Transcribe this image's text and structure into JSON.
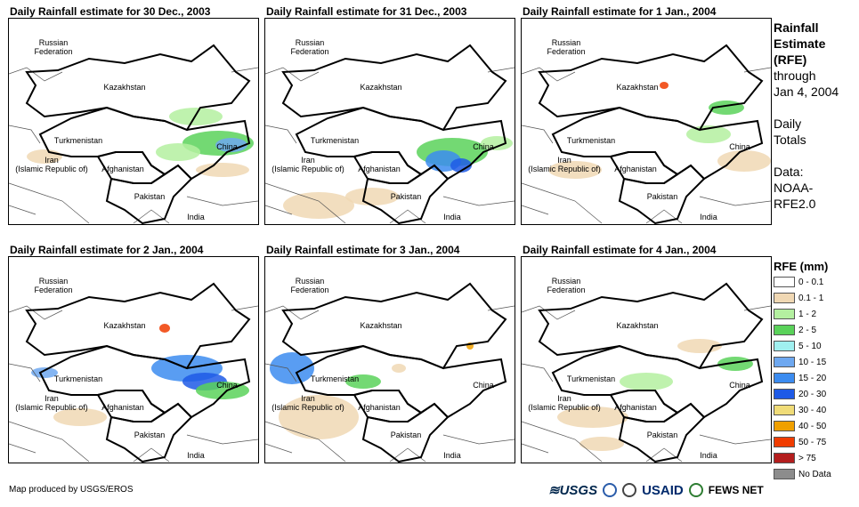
{
  "panels": [
    {
      "title": "Daily Rainfall estimate for 30 Dec., 2003"
    },
    {
      "title": "Daily Rainfall estimate for 31 Dec., 2003"
    },
    {
      "title": "Daily Rainfall estimate for 1 Jan., 2004"
    },
    {
      "title": "Daily Rainfall estimate for 2 Jan., 2004"
    },
    {
      "title": "Daily Rainfall estimate for 3 Jan., 2004"
    },
    {
      "title": "Daily Rainfall estimate for 4 Jan., 2004"
    }
  ],
  "map_labels": {
    "russia_1": "Russian",
    "russia_2": "Federation",
    "kazakhstan": "Kazakhstan",
    "turkmenistan": "Turkmenistan",
    "china": "China",
    "iran_1": "Iran",
    "iran_2": "(Islamic Republic of)",
    "afghanistan": "Afghanistan",
    "pakistan": "Pakistan",
    "india": "India"
  },
  "side": {
    "title_1": "Rainfall",
    "title_2": "Estimate",
    "title_3": "(RFE)",
    "through": "through",
    "date": "Jan 4, 2004",
    "daily": "Daily",
    "totals": "Totals",
    "data_1": "Data:",
    "data_2": "NOAA-",
    "data_3": "RFE2.0"
  },
  "legend": {
    "title": "RFE (mm)",
    "items": [
      {
        "label": "0 - 0.1",
        "color": "#ffffff"
      },
      {
        "label": "0.1 - 1",
        "color": "#f0d8b4"
      },
      {
        "label": "1 - 2",
        "color": "#b4f0a0"
      },
      {
        "label": "2 - 5",
        "color": "#5ad25a"
      },
      {
        "label": "5 - 10",
        "color": "#a0f0f0"
      },
      {
        "label": "10 - 15",
        "color": "#6ea8f0"
      },
      {
        "label": "15 - 20",
        "color": "#3c8cf0"
      },
      {
        "label": "20 - 30",
        "color": "#1e5ae6"
      },
      {
        "label": "30 - 40",
        "color": "#f0dc78"
      },
      {
        "label": "40 - 50",
        "color": "#f0a000"
      },
      {
        "label": "50 - 75",
        "color": "#f03c00"
      },
      {
        "label": "> 75",
        "color": "#b41e1e"
      },
      {
        "label": "No Data",
        "color": "#8c8c8c"
      }
    ]
  },
  "credit": "Map produced by USGS/EROS",
  "logos": {
    "usgs": "≋USGS",
    "usaid": "USAID",
    "fews": "FEWS NET"
  }
}
